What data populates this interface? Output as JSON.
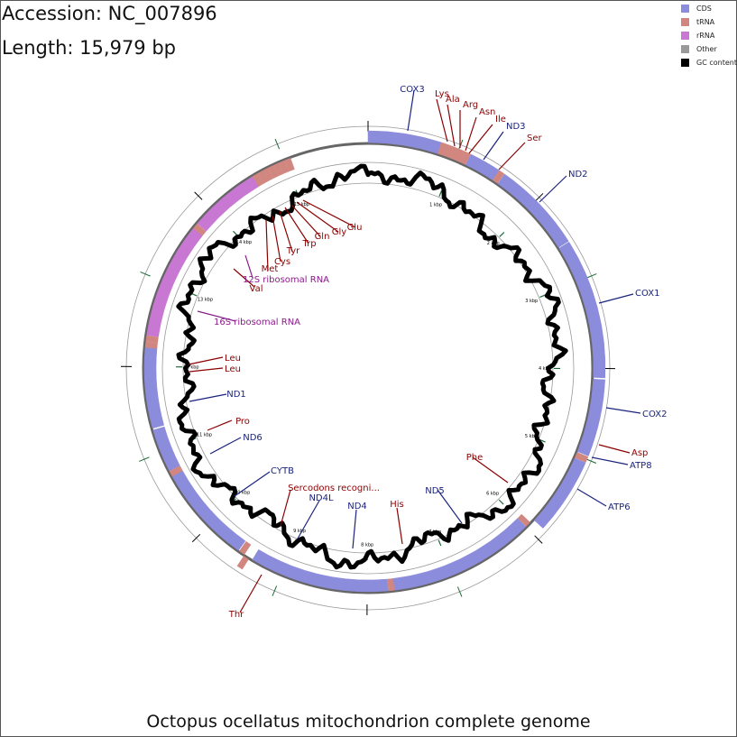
{
  "header": {
    "accession": "Accession: NC_007896",
    "length": "Length: 15,979 bp"
  },
  "title": "Octopus ocellatus mitochondrion complete genome",
  "legend": [
    {
      "label": "CDS",
      "color": "#8c8cdc"
    },
    {
      "label": "tRNA",
      "color": "#d1877f"
    },
    {
      "label": "rRNA",
      "color": "#c878d2"
    },
    {
      "label": "Other",
      "color": "#999999"
    },
    {
      "label": "GC content",
      "color": "#000000"
    }
  ],
  "genome": {
    "length_bp": 15979,
    "kbp_ticks": [
      "1 kbp",
      "2 kbp",
      "3 kbp",
      "4 kbp",
      "5 kbp",
      "6 kbp",
      "7 kbp",
      "8 kbp",
      "9 kbp",
      "10 kbp",
      "11 kbp",
      "12 kbp",
      "13 kbp",
      "14 kbp",
      "15 kbp"
    ]
  },
  "chart_data": {
    "type": "circular_genome_map",
    "features": [
      {
        "name": "COX3",
        "type": "CDS",
        "strand": "+",
        "start": 0,
        "end": 800
      },
      {
        "name": "Lys",
        "type": "tRNA",
        "strand": "+",
        "start": 800,
        "end": 866
      },
      {
        "name": "Ala",
        "type": "tRNA",
        "strand": "+",
        "start": 868,
        "end": 934
      },
      {
        "name": "Arg",
        "type": "tRNA",
        "strand": "+",
        "start": 936,
        "end": 1002
      },
      {
        "name": "Asn",
        "type": "tRNA",
        "strand": "+",
        "start": 1004,
        "end": 1068
      },
      {
        "name": "Ile",
        "type": "tRNA",
        "strand": "+",
        "start": 1070,
        "end": 1136
      },
      {
        "name": "ND3",
        "type": "CDS",
        "strand": "+",
        "start": 1140,
        "end": 1490
      },
      {
        "name": "Ser",
        "type": "tRNA",
        "strand": "+",
        "start": 1490,
        "end": 1555
      },
      {
        "name": "ND2",
        "type": "CDS",
        "strand": "+",
        "start": 1560,
        "end": 2560
      },
      {
        "name": "COX1",
        "type": "CDS",
        "strand": "+",
        "start": 2570,
        "end": 4100
      },
      {
        "name": "COX2",
        "type": "CDS",
        "strand": "+",
        "start": 4120,
        "end": 4960
      },
      {
        "name": "Asp",
        "type": "tRNA",
        "strand": "+",
        "start": 4970,
        "end": 5035
      },
      {
        "name": "ATP8",
        "type": "CDS",
        "strand": "+",
        "start": 5040,
        "end": 5210
      },
      {
        "name": "ATP6",
        "type": "CDS",
        "strand": "+",
        "start": 5210,
        "end": 5880
      },
      {
        "name": "Phe",
        "type": "tRNA",
        "strand": "-",
        "start": 5930,
        "end": 5995
      },
      {
        "name": "ND5",
        "type": "CDS",
        "strand": "-",
        "start": 6000,
        "end": 7690
      },
      {
        "name": "His",
        "type": "tRNA",
        "strand": "-",
        "start": 7690,
        "end": 7755
      },
      {
        "name": "ND4",
        "type": "CDS",
        "strand": "-",
        "start": 7760,
        "end": 9090
      },
      {
        "name": "ND4L",
        "type": "CDS",
        "strand": "-",
        "start": 9080,
        "end": 9370
      },
      {
        "name": "Thr",
        "type": "tRNA",
        "strand": "+",
        "start": 9410,
        "end": 9475
      },
      {
        "name": "Sercodons recogni...",
        "type": "tRNA",
        "strand": "-",
        "start": 9480,
        "end": 9548
      },
      {
        "name": "CYTB",
        "type": "CDS",
        "strand": "-",
        "start": 9560,
        "end": 10700
      },
      {
        "name": "Pro",
        "type": "tRNA",
        "strand": "-",
        "start": 10700,
        "end": 10767
      },
      {
        "name": "ND6",
        "type": "CDS",
        "strand": "-",
        "start": 10770,
        "end": 11270
      },
      {
        "name": "ND1",
        "type": "CDS",
        "strand": "-",
        "start": 11290,
        "end": 12220
      },
      {
        "name": "Leu",
        "type": "tRNA",
        "strand": "-",
        "start": 12220,
        "end": 12285
      },
      {
        "name": "Leu",
        "type": "tRNA",
        "strand": "-",
        "start": 12290,
        "end": 12355
      },
      {
        "name": "16S ribosomal RNA",
        "type": "rRNA",
        "strand": "-",
        "start": 12360,
        "end": 13700
      },
      {
        "name": "Val",
        "type": "tRNA",
        "strand": "-",
        "start": 13700,
        "end": 13765
      },
      {
        "name": "12S ribosomal RNA",
        "type": "rRNA",
        "strand": "-",
        "start": 13770,
        "end": 14600
      },
      {
        "name": "Met",
        "type": "tRNA",
        "strand": "-",
        "start": 14600,
        "end": 14665
      },
      {
        "name": "Cys",
        "type": "tRNA",
        "strand": "-",
        "start": 14668,
        "end": 14731
      },
      {
        "name": "Tyr",
        "type": "tRNA",
        "strand": "-",
        "start": 14734,
        "end": 14800
      },
      {
        "name": "Trp",
        "type": "tRNA",
        "strand": "-",
        "start": 14803,
        "end": 14869
      },
      {
        "name": "Gln",
        "type": "tRNA",
        "strand": "-",
        "start": 14872,
        "end": 14938
      },
      {
        "name": "Gly",
        "type": "tRNA",
        "strand": "-",
        "start": 14941,
        "end": 15006
      },
      {
        "name": "Glu",
        "type": "tRNA",
        "strand": "-",
        "start": 15010,
        "end": 15078
      }
    ]
  },
  "labels": [
    {
      "text": "COX3",
      "color": "#1a237e",
      "pos": 4.2,
      "side": "outer",
      "anchor": "end",
      "dx": 0
    },
    {
      "text": "Lys",
      "color": "#8b0000",
      "pos": 5.5,
      "side": "outer"
    },
    {
      "text": "Ala",
      "color": "#8b0000",
      "pos": 5.6,
      "side": "outer"
    },
    {
      "text": "Arg",
      "color": "#8b0000",
      "pos": 5.7,
      "side": "outer"
    },
    {
      "text": "Asn",
      "color": "#8b0000",
      "pos": 5.8,
      "side": "outer"
    },
    {
      "text": "Ile",
      "color": "#8b0000",
      "pos": 5.9,
      "side": "outer"
    },
    {
      "text": "ND3",
      "color": "#1a237e",
      "pos": 6.0,
      "side": "outer"
    },
    {
      "text": "Ser",
      "color": "#8b0000",
      "pos": 6.1,
      "side": "outer"
    },
    {
      "text": "ND2",
      "color": "#1a237e",
      "pos": 6.2,
      "side": "outer"
    },
    {
      "text": "COX1",
      "color": "#1a237e",
      "pos": 6.3,
      "side": "outer"
    },
    {
      "text": "COX2",
      "color": "#1a237e",
      "pos": 6.4,
      "side": "outer"
    },
    {
      "text": "Asp",
      "color": "#8b0000",
      "pos": 6.5,
      "side": "outer"
    },
    {
      "text": "ATP8",
      "color": "#1a237e",
      "pos": 6.6,
      "side": "outer"
    },
    {
      "text": "ATP6",
      "color": "#1a237e",
      "pos": 6.7,
      "side": "outer"
    },
    {
      "text": "Thr",
      "color": "#8b0000",
      "pos": 6.8,
      "side": "outer"
    },
    {
      "text": "Phe",
      "color": "#8b0000",
      "pos": 7.0,
      "side": "inner"
    },
    {
      "text": "ND5",
      "color": "#1a237e",
      "pos": 7.1,
      "side": "inner"
    },
    {
      "text": "His",
      "color": "#8b0000",
      "pos": 7.2,
      "side": "inner"
    },
    {
      "text": "ND4",
      "color": "#1a237e",
      "pos": 7.3,
      "side": "inner"
    },
    {
      "text": "ND4L",
      "color": "#1a237e",
      "pos": 7.4,
      "side": "inner"
    },
    {
      "text": "Sercodons recogni...",
      "color": "#8b0000",
      "pos": 7.5,
      "side": "inner"
    },
    {
      "text": "CYTB",
      "color": "#1a237e",
      "pos": 7.6,
      "side": "inner"
    },
    {
      "text": "ND6",
      "color": "#1a237e",
      "pos": 7.7,
      "side": "inner"
    },
    {
      "text": "Pro",
      "color": "#8b0000",
      "pos": 7.8,
      "side": "inner"
    },
    {
      "text": "ND1",
      "color": "#1a237e",
      "pos": 7.9,
      "side": "inner"
    },
    {
      "text": "Leu",
      "color": "#8b0000",
      "pos": 8.0,
      "side": "inner"
    },
    {
      "text": "Leu",
      "color": "#8b0000",
      "pos": 8.1,
      "side": "inner"
    },
    {
      "text": "16S ribosomal RNA",
      "color": "#8b1a8b",
      "pos": 8.2,
      "side": "inner"
    },
    {
      "text": "Val",
      "color": "#8b0000",
      "pos": 8.3,
      "side": "inner"
    },
    {
      "text": "12S ribosomal RNA",
      "color": "#8b1a8b",
      "pos": 8.4,
      "side": "inner"
    },
    {
      "text": "Met",
      "color": "#8b0000",
      "pos": 8.5,
      "side": "inner"
    },
    {
      "text": "Cys",
      "color": "#8b0000",
      "pos": 8.6,
      "side": "inner"
    },
    {
      "text": "Tyr",
      "color": "#8b0000",
      "pos": 8.7,
      "side": "inner"
    },
    {
      "text": "Trp",
      "color": "#8b0000",
      "pos": 8.8,
      "side": "inner"
    },
    {
      "text": "Gln",
      "color": "#8b0000",
      "pos": 8.9,
      "side": "inner"
    },
    {
      "text": "Gly",
      "color": "#8b0000",
      "pos": 9.0,
      "side": "inner"
    },
    {
      "text": "Glu",
      "color": "#8b0000",
      "pos": 9.1,
      "side": "inner"
    }
  ]
}
